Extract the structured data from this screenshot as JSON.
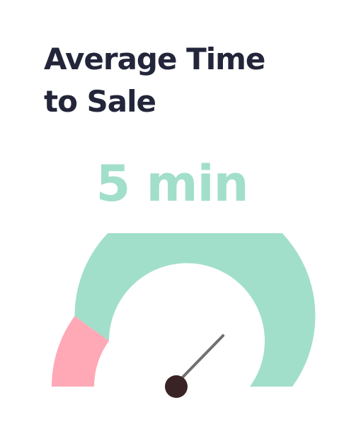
{
  "widget": {
    "title_line1": "Average Time",
    "title_line2": "to Sale",
    "value_text": "5 min"
  },
  "gauge": {
    "fraction_low_zone": 0.2,
    "needle_fraction": 0.75,
    "colors": {
      "low_zone": "#ffa9b6",
      "normal_zone": "#a1dfca",
      "needle": "#707070",
      "hub": "#3a2325",
      "title": "#23263a",
      "value": "#a1dfca"
    }
  }
}
